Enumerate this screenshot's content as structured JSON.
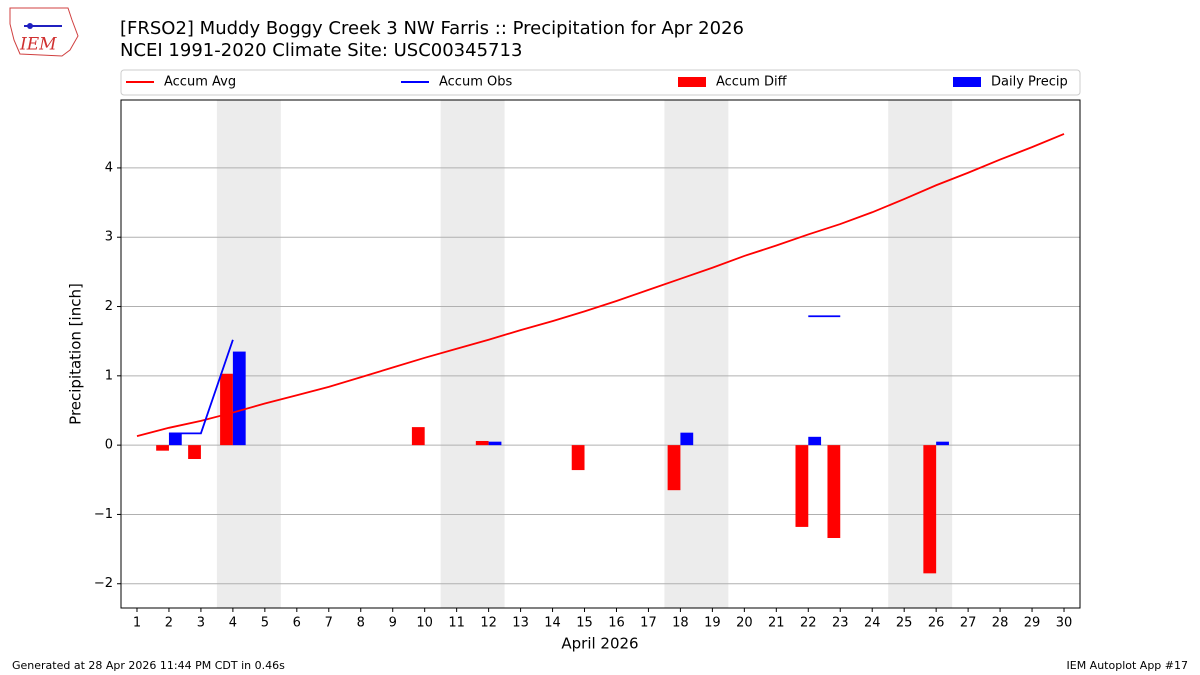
{
  "logo": {
    "text": "IEM"
  },
  "chart_data": {
    "type": "combo",
    "title": "[FRSO2] Muddy Boggy Creek 3 NW Farris :: Precipitation for Apr 2026",
    "subtitle": "NCEI 1991-2020 Climate Site: USC00345713",
    "xlabel": "April 2026",
    "ylabel": "Precipitation [inch]",
    "x": [
      1,
      2,
      3,
      4,
      5,
      6,
      7,
      8,
      9,
      10,
      11,
      12,
      13,
      14,
      15,
      16,
      17,
      18,
      19,
      20,
      21,
      22,
      23,
      24,
      25,
      26,
      27,
      28,
      29,
      30
    ],
    "xlim": [
      0.5,
      30.5
    ],
    "ylim": [
      -2.35,
      4.98
    ],
    "yticks": [
      {
        "value": -2,
        "label": "−2"
      },
      {
        "value": -1,
        "label": "−1"
      },
      0,
      1,
      2,
      3,
      4
    ],
    "grid": true,
    "weekend_spans": [
      [
        3.5,
        5.5
      ],
      [
        10.5,
        12.5
      ],
      [
        17.5,
        19.5
      ],
      [
        24.5,
        26.5
      ]
    ],
    "series": [
      {
        "name": "Accum Avg",
        "kind": "line",
        "color": "#ff0000",
        "values": [
          0.13,
          0.25,
          0.35,
          0.47,
          0.6,
          0.72,
          0.84,
          0.98,
          1.12,
          1.26,
          1.39,
          1.52,
          1.66,
          1.79,
          1.93,
          2.08,
          2.24,
          2.4,
          2.56,
          2.73,
          2.88,
          3.04,
          3.19,
          3.36,
          3.55,
          3.75,
          3.93,
          4.12,
          4.3,
          4.49
        ]
      },
      {
        "name": "Accum Obs",
        "kind": "line",
        "color": "#0000ff",
        "values": [
          null,
          0.17,
          0.17,
          1.52,
          null,
          null,
          null,
          null,
          null,
          null,
          null,
          null,
          null,
          null,
          null,
          null,
          null,
          null,
          null,
          null,
          null,
          1.86,
          1.86,
          null,
          null,
          null,
          null,
          null,
          null,
          null
        ]
      },
      {
        "name": "Accum Diff",
        "kind": "bar",
        "offset": -0.2,
        "color": "#ff0000",
        "values": [
          null,
          -0.08,
          -0.2,
          1.03,
          null,
          null,
          null,
          null,
          null,
          0.26,
          null,
          0.06,
          null,
          null,
          -0.36,
          null,
          null,
          -0.65,
          null,
          null,
          null,
          -1.18,
          -1.34,
          null,
          null,
          -1.85,
          null,
          null,
          null,
          null
        ]
      },
      {
        "name": "Daily Precip",
        "kind": "bar",
        "offset": 0.2,
        "color": "#0000ff",
        "values": [
          null,
          0.17,
          null,
          1.35,
          null,
          null,
          null,
          null,
          null,
          null,
          null,
          0.05,
          null,
          null,
          null,
          null,
          null,
          0.18,
          null,
          null,
          null,
          0.12,
          null,
          null,
          null,
          0.05,
          null,
          null,
          null,
          null
        ]
      }
    ],
    "footer_left": "Generated at 28 Apr 2026 11:44 PM CDT in 0.46s",
    "footer_right": "IEM Autoplot App #17"
  }
}
